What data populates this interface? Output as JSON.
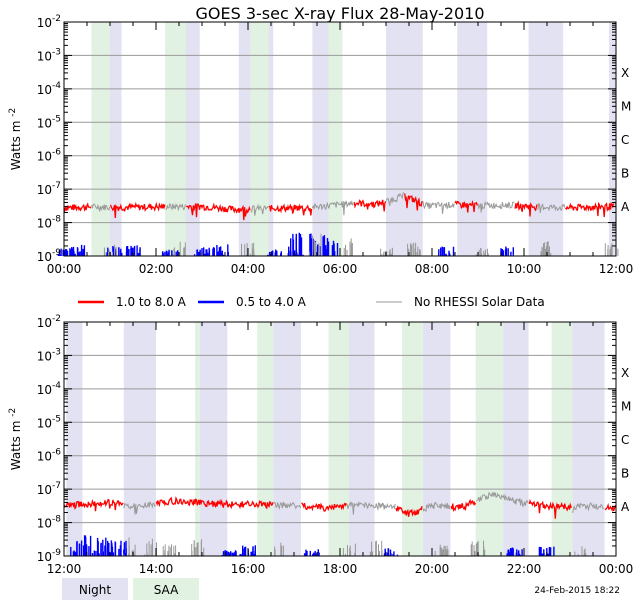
{
  "chart_data": {
    "type": "line",
    "title": "GOES 3-sec X-ray Flux   28-May-2010",
    "ylabel": "Watts m",
    "ylabel_sup": "-2",
    "yscale": "log",
    "ylim": [
      1e-09,
      0.01
    ],
    "grid": true,
    "ytick_labels": [
      {
        "base": "10",
        "exp": "-9"
      },
      {
        "base": "10",
        "exp": "-8"
      },
      {
        "base": "10",
        "exp": "-7"
      },
      {
        "base": "10",
        "exp": "-6"
      },
      {
        "base": "10",
        "exp": "-5"
      },
      {
        "base": "10",
        "exp": "-4"
      },
      {
        "base": "10",
        "exp": "-3"
      },
      {
        "base": "10",
        "exp": "-2"
      }
    ],
    "flare_classes": [
      {
        "label": "A",
        "flux": 1e-08
      },
      {
        "label": "B",
        "flux": 1e-07
      },
      {
        "label": "C",
        "flux": 1e-06
      },
      {
        "label": "M",
        "flux": 1e-05
      },
      {
        "label": "X",
        "flux": 0.0001
      }
    ],
    "legend": [
      {
        "label": "1.0 to 8.0 A",
        "color": "#ff0000"
      },
      {
        "label": "0.5 to 4.0 A",
        "color": "#0000ff"
      },
      {
        "label": "No RHESSI Solar Data",
        "color": "#999999"
      }
    ],
    "shade_legend": [
      {
        "label": "Night",
        "color": "#e2e2f2"
      },
      {
        "label": "SAA",
        "color": "#e2f2e2"
      }
    ],
    "footer": "24-Feb-2015 18:22",
    "colors": {
      "long": "#ff0000",
      "short": "#0000ff",
      "nodata": "#999999",
      "night": "#e2e2f2",
      "saa": "#e2f2e2"
    },
    "panels": [
      {
        "xlim_hours": [
          0,
          12
        ],
        "xtick_labels": [
          "00:00",
          "02:00",
          "04:00",
          "06:00",
          "08:00",
          "10:00",
          "12:00"
        ],
        "night_hours": [
          [
            0.6,
            1.25
          ],
          [
            2.2,
            2.95
          ],
          [
            3.8,
            4.55
          ],
          [
            5.4,
            6.05
          ],
          [
            7.0,
            7.8
          ],
          [
            8.55,
            9.2
          ],
          [
            10.1,
            10.85
          ],
          [
            11.85,
            12.0
          ]
        ],
        "saa_hours": [
          [
            0.6,
            1.0
          ],
          [
            2.2,
            2.65
          ],
          [
            4.05,
            4.45
          ],
          [
            5.75,
            6.05
          ]
        ],
        "long_flux": [
          [
            0.0,
            2.8e-08
          ],
          [
            0.6,
            3e-08
          ],
          [
            1.3,
            2.9e-08
          ],
          [
            2.0,
            3e-08
          ],
          [
            3.0,
            3.1e-08
          ],
          [
            3.7,
            2.5e-08
          ],
          [
            4.2,
            2.7e-08
          ],
          [
            5.3,
            2.8e-08
          ],
          [
            6.3,
            3.9e-08
          ],
          [
            6.8,
            3.6e-08
          ],
          [
            7.4,
            6.5e-08
          ],
          [
            7.9,
            3.2e-08
          ],
          [
            8.5,
            3.5e-08
          ],
          [
            9.0,
            3.3e-08
          ],
          [
            9.7,
            3.4e-08
          ],
          [
            10.3,
            3e-08
          ],
          [
            11.0,
            2.8e-08
          ],
          [
            11.6,
            3e-08
          ],
          [
            12.0,
            3.1e-08
          ]
        ],
        "long_nodata_hours": [
          [
            0.6,
            1.0
          ],
          [
            2.2,
            2.65
          ],
          [
            4.05,
            4.45
          ],
          [
            5.4,
            6.3
          ],
          [
            7.0,
            7.4
          ],
          [
            7.8,
            8.5
          ],
          [
            9.0,
            9.8
          ],
          [
            10.3,
            10.9
          ],
          [
            11.95,
            12.0
          ]
        ],
        "short_flux": [
          [
            0.05,
            1.8e-09
          ],
          [
            0.3,
            2.2e-09
          ],
          [
            1.1,
            2e-09
          ],
          [
            1.5,
            2.1e-09
          ],
          [
            2.3,
            1.6e-09
          ],
          [
            3.0,
            1.9e-09
          ],
          [
            3.4,
            2.5e-09
          ],
          [
            4.6,
            1.6e-09
          ],
          [
            5.05,
            5e-09
          ],
          [
            5.5,
            5.5e-09
          ],
          [
            5.8,
            3.5e-09
          ],
          [
            8.3,
            2.1e-09
          ],
          [
            9.6,
            2e-09
          ]
        ],
        "short_nodata_spikes": [
          [
            1.0,
            2.2e-09
          ],
          [
            2.5,
            3.2e-09
          ],
          [
            4.0,
            2.5e-09
          ],
          [
            5.45,
            5.8e-09
          ],
          [
            6.2,
            3.5e-09
          ],
          [
            7.0,
            2e-09
          ],
          [
            7.6,
            2.5e-09
          ],
          [
            9.1,
            1.8e-09
          ],
          [
            10.5,
            2.8e-09
          ],
          [
            11.9,
            2.5e-09
          ]
        ]
      },
      {
        "xlim_hours": [
          12,
          24
        ],
        "xtick_labels": [
          "12:00",
          "14:00",
          "16:00",
          "18:00",
          "20:00",
          "22:00",
          "00:00"
        ],
        "night_hours": [
          [
            12.05,
            12.4
          ],
          [
            13.3,
            14.0
          ],
          [
            14.95,
            15.55
          ],
          [
            16.55,
            17.15
          ],
          [
            18.15,
            18.75
          ],
          [
            19.8,
            20.4
          ],
          [
            21.4,
            22.1
          ],
          [
            23.05,
            23.75
          ]
        ],
        "saa_hours": [
          [
            14.85,
            14.95
          ],
          [
            16.2,
            16.55
          ],
          [
            17.75,
            18.2
          ],
          [
            19.35,
            19.8
          ],
          [
            20.95,
            21.55
          ],
          [
            22.6,
            23.05
          ]
        ],
        "long_flux": [
          [
            12.0,
            3.2e-08
          ],
          [
            12.6,
            3.8e-08
          ],
          [
            13.0,
            4e-08
          ],
          [
            13.6,
            3e-08
          ],
          [
            14.3,
            4.5e-08
          ],
          [
            14.9,
            4e-08
          ],
          [
            15.5,
            3.6e-08
          ],
          [
            16.3,
            3.5e-08
          ],
          [
            17.0,
            3.3e-08
          ],
          [
            17.7,
            2.8e-08
          ],
          [
            18.4,
            3.5e-08
          ],
          [
            19.2,
            3e-08
          ],
          [
            19.5,
            1.8e-08
          ],
          [
            20.0,
            3.3e-08
          ],
          [
            20.6,
            3e-08
          ],
          [
            21.3,
            7e-08
          ],
          [
            22.0,
            3.8e-08
          ],
          [
            22.7,
            3e-08
          ],
          [
            23.5,
            3.2e-08
          ],
          [
            24.0,
            2.8e-08
          ]
        ],
        "long_nodata_hours": [
          [
            13.3,
            14.0
          ],
          [
            16.55,
            17.15
          ],
          [
            18.15,
            19.2
          ],
          [
            19.8,
            20.4
          ],
          [
            20.95,
            22.1
          ],
          [
            23.05,
            23.75
          ]
        ],
        "short_flux": [
          [
            12.3,
            3e-09
          ],
          [
            12.6,
            4.5e-09
          ],
          [
            12.9,
            4e-09
          ],
          [
            13.2,
            3e-09
          ],
          [
            15.6,
            1.6e-09
          ],
          [
            16.0,
            2.1e-09
          ],
          [
            17.4,
            1.6e-09
          ],
          [
            19.1,
            1.8e-09
          ],
          [
            21.8,
            1.8e-09
          ],
          [
            22.5,
            2e-09
          ]
        ],
        "short_nodata_spikes": [
          [
            13.4,
            4.5e-09
          ],
          [
            13.9,
            3.5e-09
          ],
          [
            14.3,
            2.5e-09
          ],
          [
            14.9,
            3.5e-09
          ],
          [
            16.7,
            2.5e-09
          ],
          [
            18.2,
            2.5e-09
          ],
          [
            18.8,
            3e-09
          ],
          [
            20.2,
            2.2e-09
          ],
          [
            21.0,
            3e-09
          ],
          [
            23.2,
            2e-09
          ]
        ]
      }
    ]
  }
}
